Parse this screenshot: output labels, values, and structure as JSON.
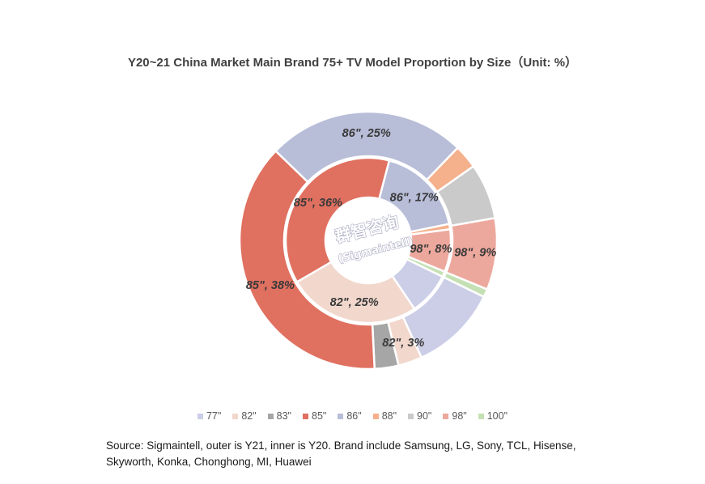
{
  "chart_data": {
    "type": "pie",
    "title": "Y20~21 China Market Main Brand 75+ TV Model Proportion by Size（Unit: %）",
    "categories": [
      "77\"",
      "82\"",
      "83\"",
      "85\"",
      "86\"",
      "88\"",
      "90\"",
      "98\"",
      "100\""
    ],
    "colors": [
      "#cbcee6",
      "#f2d7cd",
      "#a6a6a6",
      "#e07060",
      "#b8bdd8",
      "#f5b08c",
      "#cacaca",
      "#eda89d",
      "#c5e0b4"
    ],
    "series": [
      {
        "name": "outer is Y21",
        "values": [
          11,
          3,
          3,
          38,
          25,
          3,
          7,
          9,
          1
        ],
        "labels": [
          "",
          "82\", 3%",
          "",
          "85\", 38%",
          "86\", 25%",
          "",
          "",
          "98\", 9%",
          ""
        ]
      },
      {
        "name": "inner is Y20",
        "values": [
          8,
          25,
          0,
          36,
          17,
          1,
          0,
          8,
          1
        ],
        "labels": [
          "",
          "82\", 25%",
          "",
          "85\", 36%",
          "86\", 17%",
          "",
          "",
          "98\", 8%",
          ""
        ]
      }
    ],
    "legend": "bottom"
  },
  "watermark": {
    "line1": "群智咨询",
    "line2": "(Sigmaintell)"
  },
  "source": "Source: Sigmaintell, outer is Y21, inner is Y20. Brand include Samsung, LG, Sony, TCL, Hisense, Skyworth, Konka, Chonghong, MI, Huawei"
}
